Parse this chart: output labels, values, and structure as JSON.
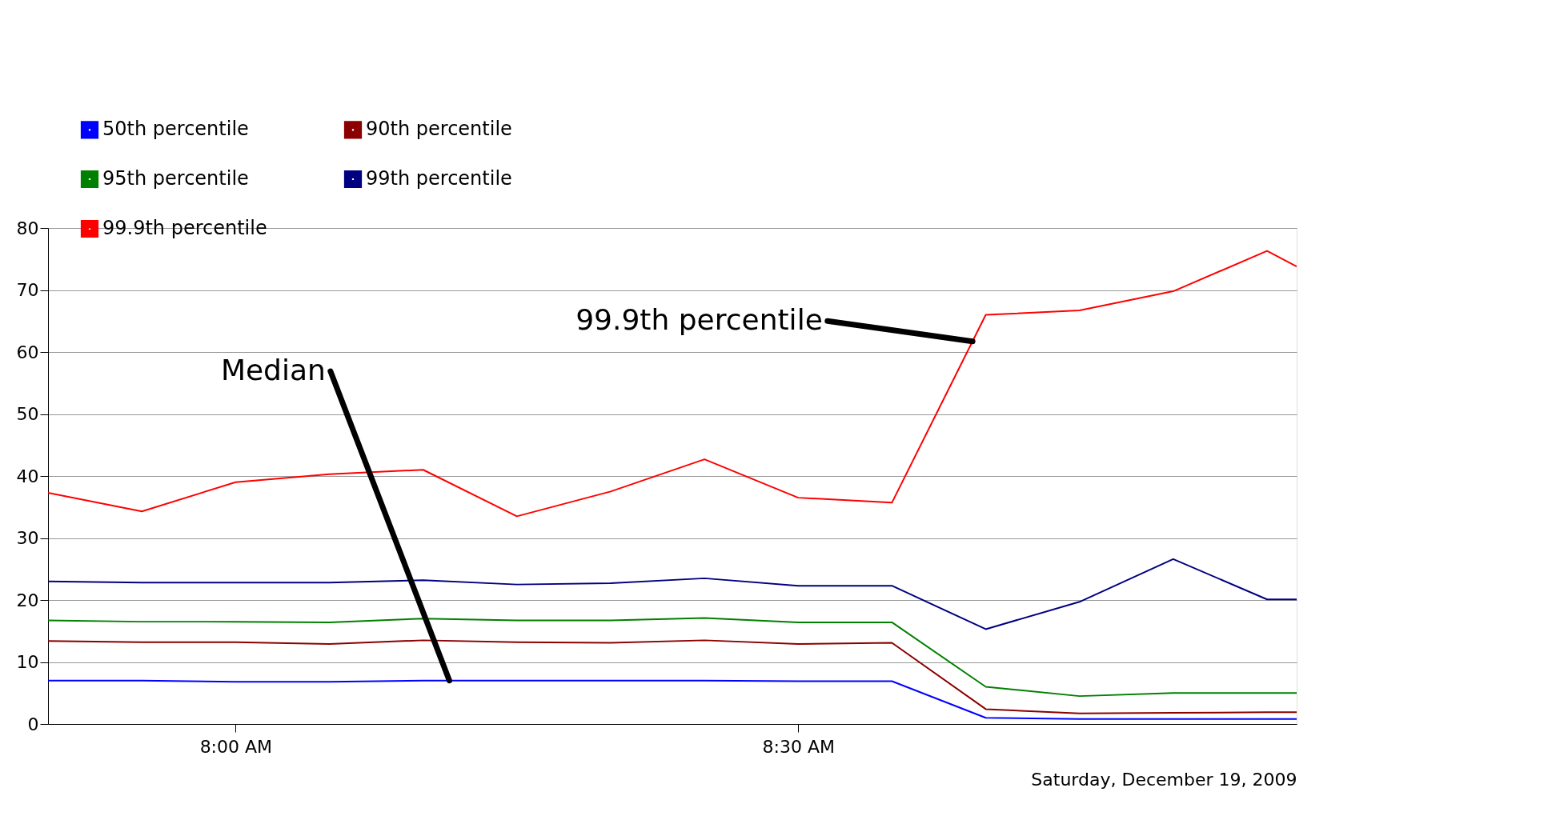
{
  "chart_data": {
    "type": "line",
    "xlabel": "Saturday, December 19, 2009",
    "x": [
      7.8333,
      7.9167,
      8.0,
      8.0833,
      8.1667,
      8.25,
      8.3333,
      8.4167,
      8.5,
      8.5833,
      8.6667,
      8.75,
      8.8333,
      8.9167,
      8.943
    ],
    "series": [
      {
        "name": "50th percentile",
        "color": "#0000ff",
        "values": [
          7,
          7,
          6.8,
          6.8,
          7,
          7,
          7,
          7,
          6.9,
          6.9,
          1,
          0.8,
          0.8,
          0.8,
          0.8
        ]
      },
      {
        "name": "90th percentile",
        "color": "#8b0000",
        "values": [
          13.4,
          13.2,
          13.2,
          12.9,
          13.5,
          13.2,
          13.1,
          13.5,
          12.9,
          13.1,
          2.4,
          1.7,
          1.8,
          1.9,
          1.9
        ]
      },
      {
        "name": "95th percentile",
        "color": "#008000",
        "values": [
          16.7,
          16.5,
          16.5,
          16.4,
          17,
          16.7,
          16.7,
          17.1,
          16.4,
          16.4,
          6,
          4.5,
          5,
          5,
          5
        ]
      },
      {
        "name": "99th percentile",
        "color": "#000080",
        "values": [
          23,
          22.8,
          22.8,
          22.8,
          23.2,
          22.5,
          22.7,
          23.5,
          22.3,
          22.3,
          15.3,
          19.7,
          26.6,
          20.1,
          20.1
        ]
      },
      {
        "name": "99.9th percentile",
        "color": "#ff0000",
        "values": [
          37.3,
          34.3,
          39,
          40.3,
          41,
          33.5,
          37.5,
          42.7,
          36.5,
          35.7,
          66,
          66.7,
          69.8,
          76.3,
          73.8
        ]
      }
    ],
    "xlim": [
      7.8333,
      8.943
    ],
    "xticks": [
      {
        "value": 8.0,
        "label": "8:00 AM"
      },
      {
        "value": 8.5,
        "label": "8:30 AM"
      }
    ],
    "ylim": [
      0,
      80
    ],
    "yticks": [
      0,
      10,
      20,
      30,
      40,
      50,
      60,
      70,
      80
    ],
    "grid": "y",
    "legend": "top left",
    "marker": "none",
    "line_style": "solid",
    "annotations": [
      {
        "text": "Median",
        "x": 8.19,
        "y": 7
      },
      {
        "text": "99.9th percentile",
        "x": 8.655,
        "y": 61.7
      }
    ]
  }
}
